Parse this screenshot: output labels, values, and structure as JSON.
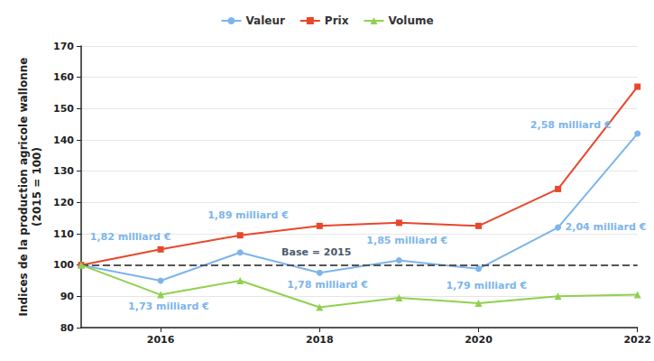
{
  "chart_data": {
    "type": "line",
    "y_label": "Indices de la production agricole wallonne\n(2015 = 100)",
    "x": [
      2015,
      2016,
      2017,
      2018,
      2019,
      2020,
      2021,
      2022
    ],
    "series": [
      {
        "name": "Valeur",
        "color": "#7cb5ec",
        "marker": "circle",
        "line_style": "solid",
        "values": [
          100,
          95,
          104,
          97.5,
          101.5,
          98.8,
          112,
          142
        ]
      },
      {
        "name": "Prix",
        "color": "#e8472b",
        "marker": "square",
        "line_style": "solid",
        "values": [
          100,
          105,
          109.5,
          112.5,
          113.5,
          112.5,
          124.3,
          157
        ]
      },
      {
        "name": "Volume",
        "color": "#8fd14f",
        "marker": "triangle",
        "line_style": "solid",
        "values": [
          100,
          90.5,
          95,
          86.5,
          89.5,
          87.8,
          90,
          90.5
        ]
      }
    ],
    "xlim": [
      2015,
      2022
    ],
    "xticks": [
      2016,
      2018,
      2020,
      2022
    ],
    "ylim": [
      80,
      170
    ],
    "yticks": [
      80,
      90,
      100,
      110,
      120,
      130,
      140,
      150,
      160,
      170
    ],
    "grid": true,
    "legend": "top",
    "reference_line": {
      "y": 100,
      "line_style": "dashed",
      "color": "#555555"
    },
    "annotations": [
      {
        "x": 2015.62,
        "y": 109.1,
        "text": "1,82 milliard €",
        "color": "#7cb5ec"
      },
      {
        "x": 2016.1,
        "y": 86.9,
        "text": "1,73 milliard €",
        "color": "#7cb5ec"
      },
      {
        "x": 2017.1,
        "y": 116,
        "text": "1,89 milliard €",
        "color": "#7cb5ec"
      },
      {
        "x": 2017.96,
        "y": 104.2,
        "text": "Base = 2015",
        "color": "#4a5a6a"
      },
      {
        "x": 2018.1,
        "y": 93.8,
        "text": "1,78 milliard €",
        "color": "#7cb5ec"
      },
      {
        "x": 2019.1,
        "y": 107.7,
        "text": "1,85 milliard €",
        "color": "#7cb5ec"
      },
      {
        "x": 2020.1,
        "y": 93.3,
        "text": "1,79 milliard €",
        "color": "#7cb5ec"
      },
      {
        "x": 2021.6,
        "y": 112.3,
        "text": "2,04 milliard €",
        "color": "#7cb5ec"
      },
      {
        "x": 2021.16,
        "y": 144.9,
        "text": "2,58 milliard €",
        "color": "#7cb5ec"
      }
    ]
  }
}
